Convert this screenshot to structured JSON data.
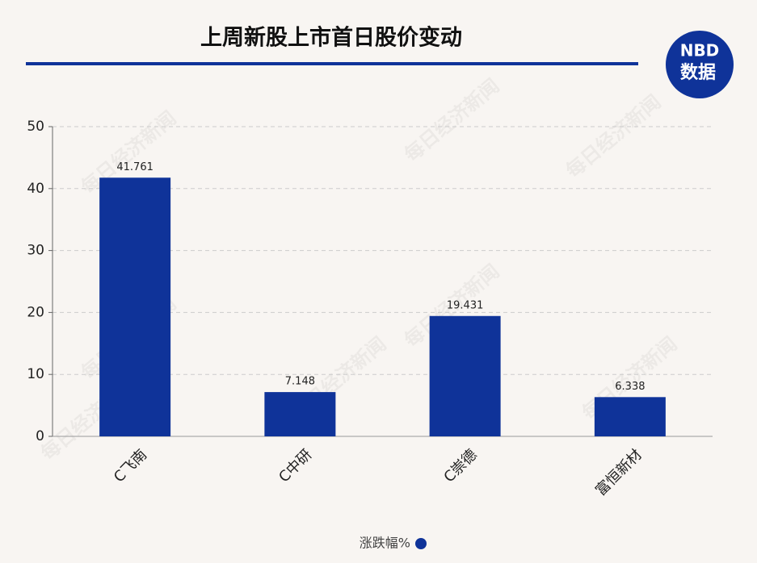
{
  "chart_data": {
    "type": "bar",
    "title": "上周新股上市首日股价变动",
    "logo": {
      "brand": "NBD",
      "label": "数据"
    },
    "watermark": "每日经济新闻",
    "categories": [
      "C飞南",
      "C中研",
      "C崇德",
      "富恒新材"
    ],
    "series": [
      {
        "name": "涨跌幅%",
        "color": "#0f3399",
        "values": [
          41.761,
          7.148,
          19.431,
          6.338
        ]
      }
    ],
    "ylim": [
      0,
      50
    ],
    "yticks": [
      0,
      10,
      20,
      30,
      40,
      50
    ],
    "grid": true
  }
}
